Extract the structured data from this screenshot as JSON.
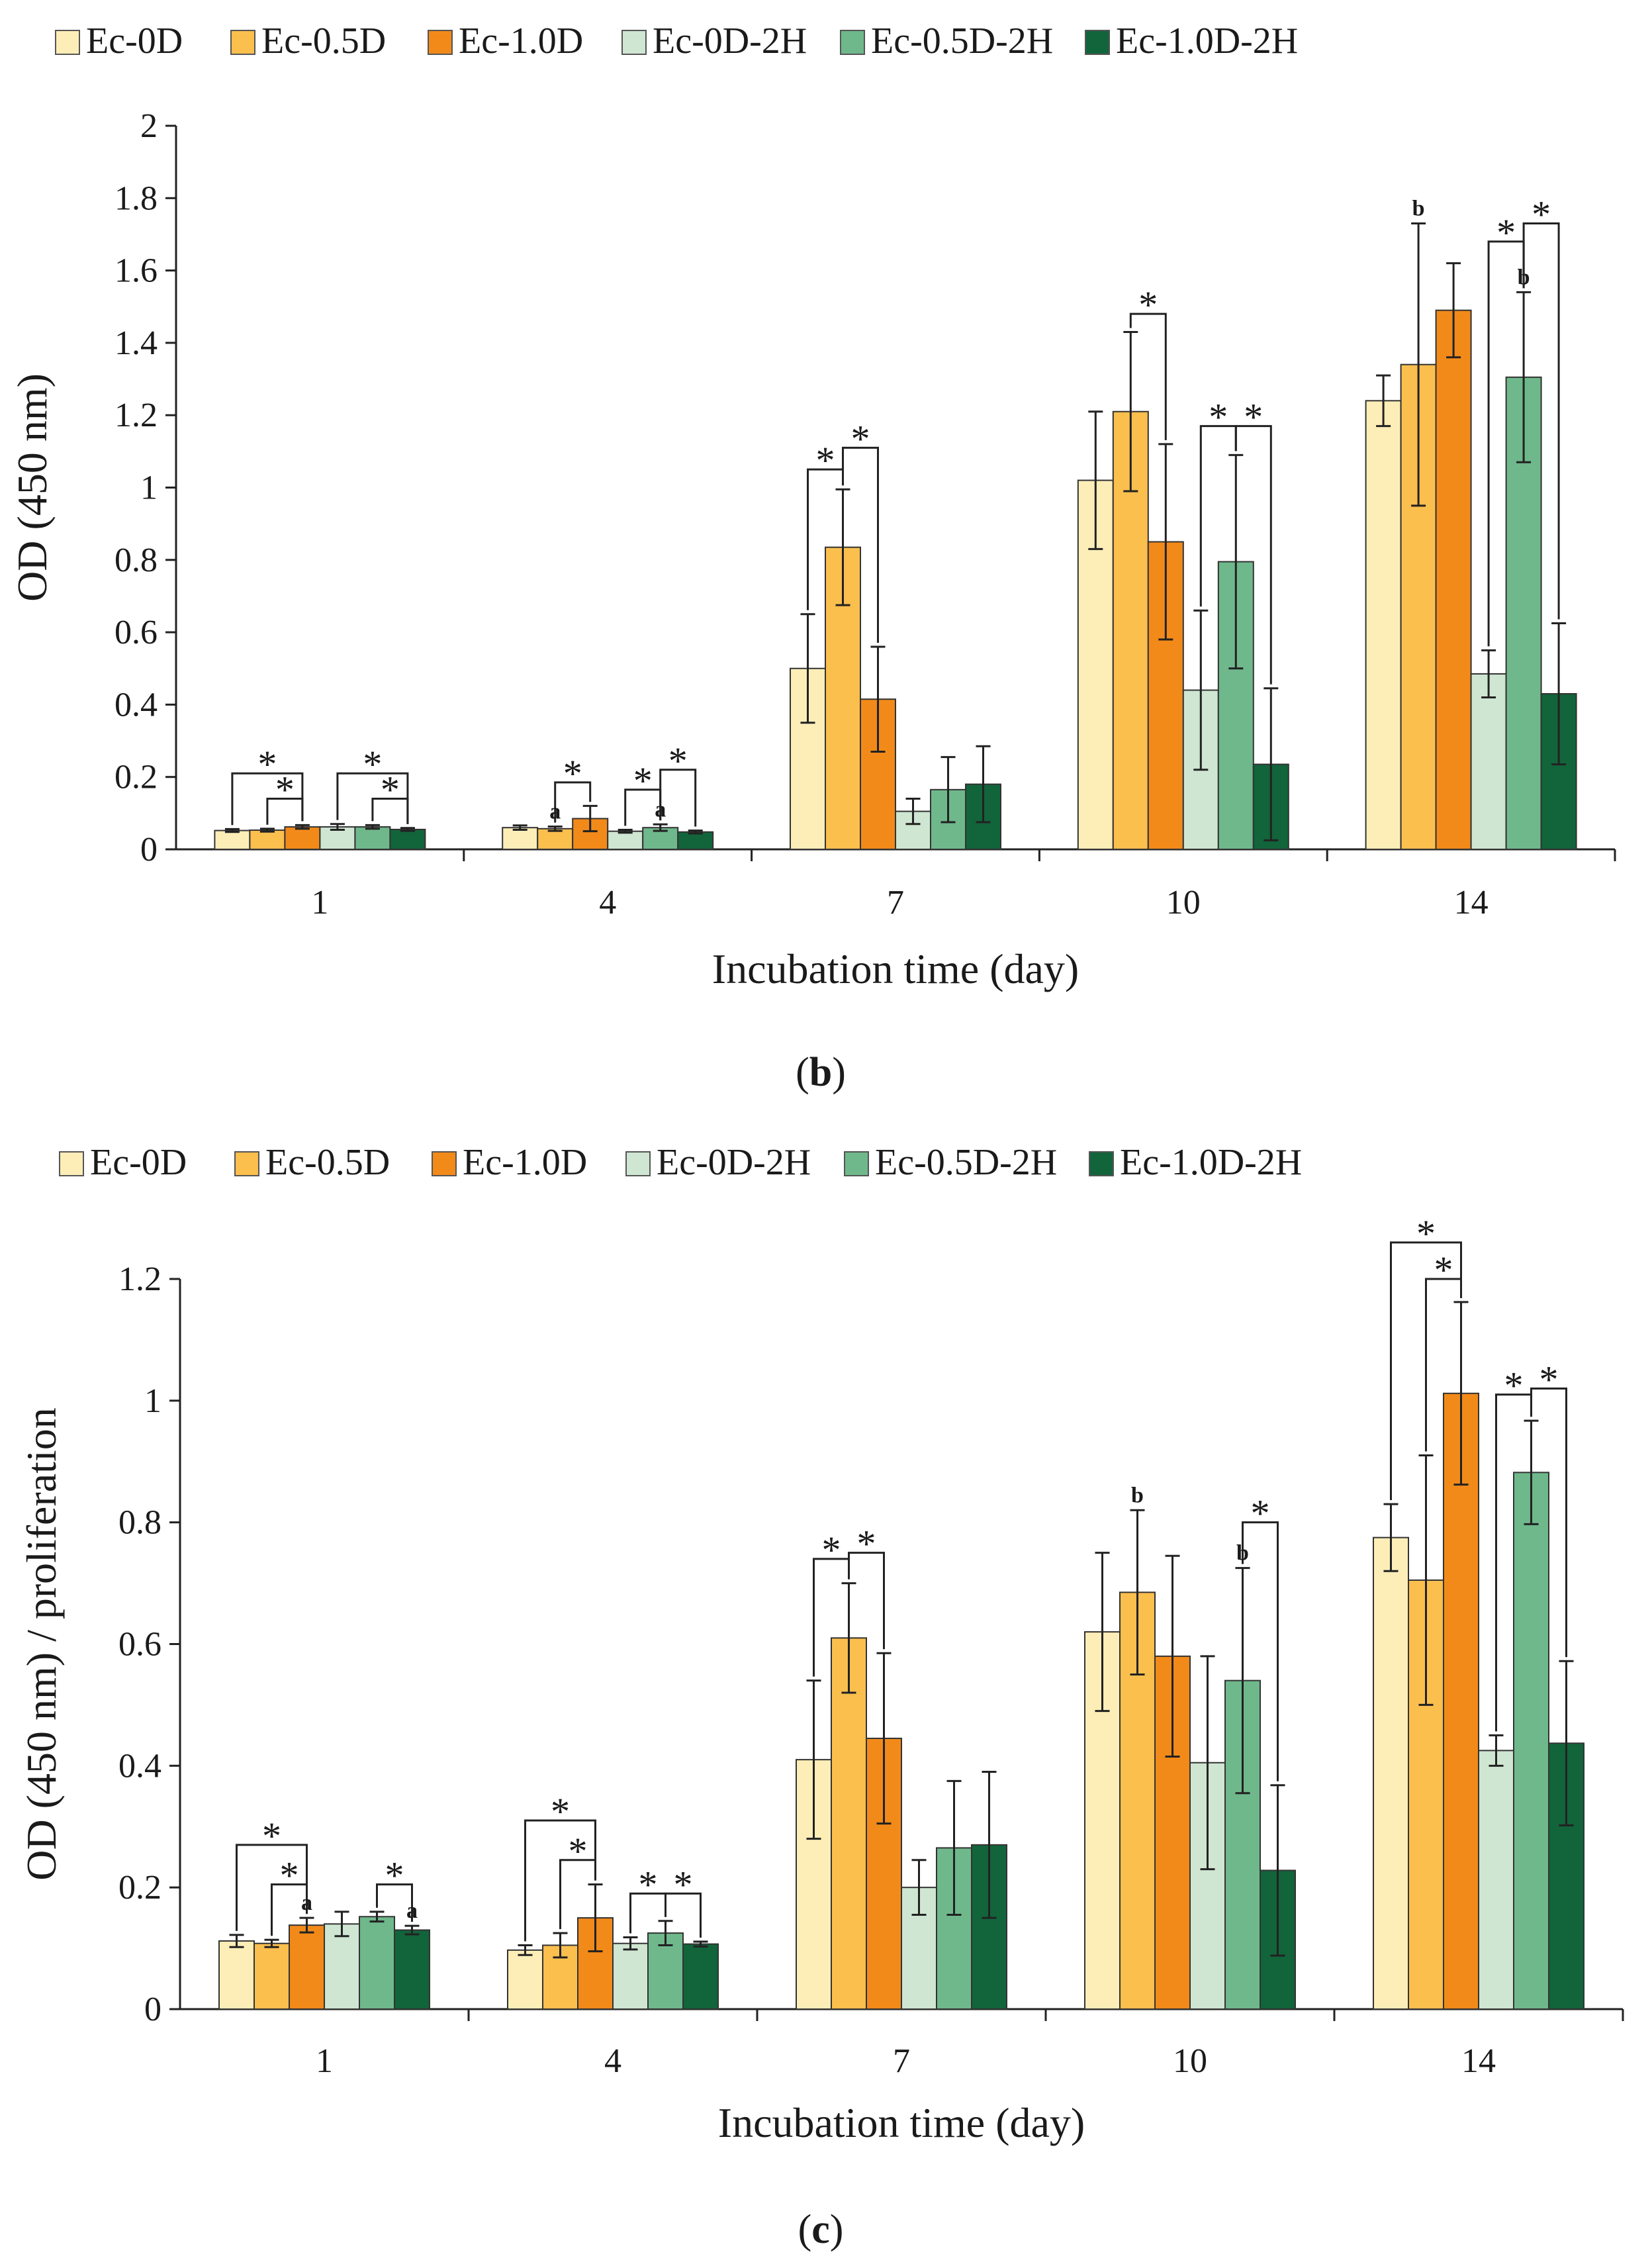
{
  "chart_data": [
    {
      "type": "bar",
      "panel_label": "b",
      "xlabel": "Incubation time (day)",
      "ylabel": "OD (450 nm)",
      "ylim": [
        0,
        2
      ],
      "yticks": [
        "0",
        "0.2",
        "0.4",
        "0.6",
        "0.8",
        "1",
        "1.2",
        "1.4",
        "1.6",
        "1.8",
        "2"
      ],
      "yticks_values": [
        0,
        0.2,
        0.4,
        0.6,
        0.8,
        1,
        1.2,
        1.4,
        1.6,
        1.8,
        2
      ],
      "categories": [
        "1",
        "4",
        "7",
        "10",
        "14"
      ],
      "legend_position": "top",
      "grid": false,
      "series": [
        {
          "name": "Ec-0D",
          "color": "#fdeeb8",
          "values": [
            0.052,
            0.06,
            0.5,
            1.02,
            1.24
          ],
          "errors": [
            0.004,
            0.006,
            0.15,
            0.19,
            0.07
          ]
        },
        {
          "name": "Ec-0.5D",
          "color": "#fbbf4e",
          "values": [
            0.053,
            0.057,
            0.835,
            1.21,
            1.34
          ],
          "errors": [
            0.004,
            0.006,
            0.16,
            0.22,
            0.39
          ]
        },
        {
          "name": "Ec-1.0D",
          "color": "#f28a1a",
          "values": [
            0.062,
            0.085,
            0.415,
            0.85,
            1.49
          ],
          "errors": [
            0.005,
            0.035,
            0.145,
            0.27,
            0.13
          ]
        },
        {
          "name": "Ec-0D-2H",
          "color": "#cfe6d2",
          "values": [
            0.062,
            0.05,
            0.105,
            0.44,
            0.485
          ],
          "errors": [
            0.008,
            0.004,
            0.035,
            0.22,
            0.065
          ]
        },
        {
          "name": "Ec-0.5D-2H",
          "color": "#6fb88c",
          "values": [
            0.062,
            0.06,
            0.165,
            0.795,
            1.305
          ],
          "errors": [
            0.005,
            0.009,
            0.09,
            0.295,
            0.235
          ]
        },
        {
          "name": "Ec-1.0D-2H",
          "color": "#12643b",
          "values": [
            0.055,
            0.048,
            0.18,
            0.235,
            0.43
          ],
          "errors": [
            0.004,
            0.004,
            0.105,
            0.21,
            0.195
          ]
        }
      ],
      "brackets": [
        {
          "group": 0,
          "from": 0,
          "to": 2,
          "y": 0.21,
          "label": "*"
        },
        {
          "group": 0,
          "from": 1,
          "to": 2,
          "y": 0.14,
          "label": "*"
        },
        {
          "group": 0,
          "from": 3,
          "to": 5,
          "y": 0.21,
          "label": "*"
        },
        {
          "group": 0,
          "from": 4,
          "to": 5,
          "y": 0.14,
          "label": "*"
        },
        {
          "group": 1,
          "from": 1,
          "to": 2,
          "y": 0.185,
          "label": "*"
        },
        {
          "group": 1,
          "from": 3,
          "to": 4,
          "y": 0.165,
          "label": "*"
        },
        {
          "group": 1,
          "from": 4,
          "to": 5,
          "y": 0.22,
          "label": "*"
        },
        {
          "group": 2,
          "from": 0,
          "to": 1,
          "y": 1.05,
          "label": "*"
        },
        {
          "group": 2,
          "from": 1,
          "to": 2,
          "y": 1.11,
          "label": "*"
        },
        {
          "group": 3,
          "from": 1,
          "to": 2,
          "y": 1.48,
          "label": "*"
        },
        {
          "group": 3,
          "from": 3,
          "to": 4,
          "y": 1.17,
          "label": "*"
        },
        {
          "group": 3,
          "from": 4,
          "to": 5,
          "y": 1.17,
          "label": "*"
        },
        {
          "group": 4,
          "from": 3,
          "to": 4,
          "y": 1.68,
          "label": "*"
        },
        {
          "group": 4,
          "from": 4,
          "to": 5,
          "y": 1.73,
          "label": "*"
        }
      ],
      "letters": [
        {
          "group": 1,
          "series": 1,
          "label": "a"
        },
        {
          "group": 1,
          "series": 4,
          "label": "a"
        },
        {
          "group": 4,
          "series": 1,
          "label": "b"
        },
        {
          "group": 4,
          "series": 4,
          "label": "b"
        }
      ]
    },
    {
      "type": "bar",
      "panel_label": "c",
      "xlabel": "Incubation time (day)",
      "ylabel": "OD (450 nm) / proliferation",
      "ylim": [
        0,
        1.2
      ],
      "yticks": [
        "0",
        "0.2",
        "0.4",
        "0.6",
        "0.8",
        "1",
        "1.2"
      ],
      "yticks_values": [
        0,
        0.2,
        0.4,
        0.6,
        0.8,
        1,
        1.2
      ],
      "categories": [
        "1",
        "4",
        "7",
        "10",
        "14"
      ],
      "legend_position": "top",
      "grid": false,
      "series": [
        {
          "name": "Ec-0D",
          "color": "#fdeeb8",
          "values": [
            0.112,
            0.097,
            0.41,
            0.62,
            0.775
          ],
          "errors": [
            0.01,
            0.008,
            0.13,
            0.13,
            0.055
          ]
        },
        {
          "name": "Ec-0.5D",
          "color": "#fbbf4e",
          "values": [
            0.108,
            0.105,
            0.61,
            0.685,
            0.705
          ],
          "errors": [
            0.006,
            0.02,
            0.09,
            0.135,
            0.205
          ]
        },
        {
          "name": "Ec-1.0D",
          "color": "#f28a1a",
          "values": [
            0.138,
            0.15,
            0.445,
            0.58,
            1.012
          ],
          "errors": [
            0.012,
            0.055,
            0.14,
            0.165,
            0.15
          ]
        },
        {
          "name": "Ec-0D-2H",
          "color": "#cfe6d2",
          "values": [
            0.14,
            0.108,
            0.2,
            0.405,
            0.425
          ],
          "errors": [
            0.02,
            0.01,
            0.045,
            0.175,
            0.025
          ]
        },
        {
          "name": "Ec-0.5D-2H",
          "color": "#6fb88c",
          "values": [
            0.152,
            0.125,
            0.265,
            0.54,
            0.882
          ],
          "errors": [
            0.008,
            0.02,
            0.11,
            0.185,
            0.085
          ]
        },
        {
          "name": "Ec-1.0D-2H",
          "color": "#12643b",
          "values": [
            0.13,
            0.107,
            0.27,
            0.228,
            0.437
          ],
          "errors": [
            0.007,
            0.004,
            0.12,
            0.14,
            0.135
          ]
        }
      ],
      "brackets": [
        {
          "group": 0,
          "from": 0,
          "to": 2,
          "y": 0.27,
          "label": "*"
        },
        {
          "group": 0,
          "from": 1,
          "to": 2,
          "y": 0.205,
          "label": "*"
        },
        {
          "group": 0,
          "from": 4,
          "to": 5,
          "y": 0.205,
          "label": "*"
        },
        {
          "group": 1,
          "from": 0,
          "to": 2,
          "y": 0.31,
          "label": "*"
        },
        {
          "group": 1,
          "from": 1,
          "to": 2,
          "y": 0.245,
          "label": "*"
        },
        {
          "group": 1,
          "from": 3,
          "to": 4,
          "y": 0.19,
          "label": "*"
        },
        {
          "group": 1,
          "from": 4,
          "to": 5,
          "y": 0.19,
          "label": "*"
        },
        {
          "group": 2,
          "from": 0,
          "to": 1,
          "y": 0.74,
          "label": "*"
        },
        {
          "group": 2,
          "from": 1,
          "to": 2,
          "y": 0.75,
          "label": "*"
        },
        {
          "group": 3,
          "from": 4,
          "to": 5,
          "y": 0.8,
          "label": "*"
        },
        {
          "group": 4,
          "from": 0,
          "to": 2,
          "y": 1.26,
          "label": "*"
        },
        {
          "group": 4,
          "from": 1,
          "to": 2,
          "y": 1.2,
          "label": "*"
        },
        {
          "group": 4,
          "from": 3,
          "to": 4,
          "y": 1.01,
          "label": "*"
        },
        {
          "group": 4,
          "from": 4,
          "to": 5,
          "y": 1.02,
          "label": "*"
        }
      ],
      "letters": [
        {
          "group": 0,
          "series": 2,
          "label": "a"
        },
        {
          "group": 0,
          "series": 5,
          "label": "a"
        },
        {
          "group": 3,
          "series": 1,
          "label": "b"
        },
        {
          "group": 3,
          "series": 4,
          "label": "b"
        }
      ]
    }
  ]
}
